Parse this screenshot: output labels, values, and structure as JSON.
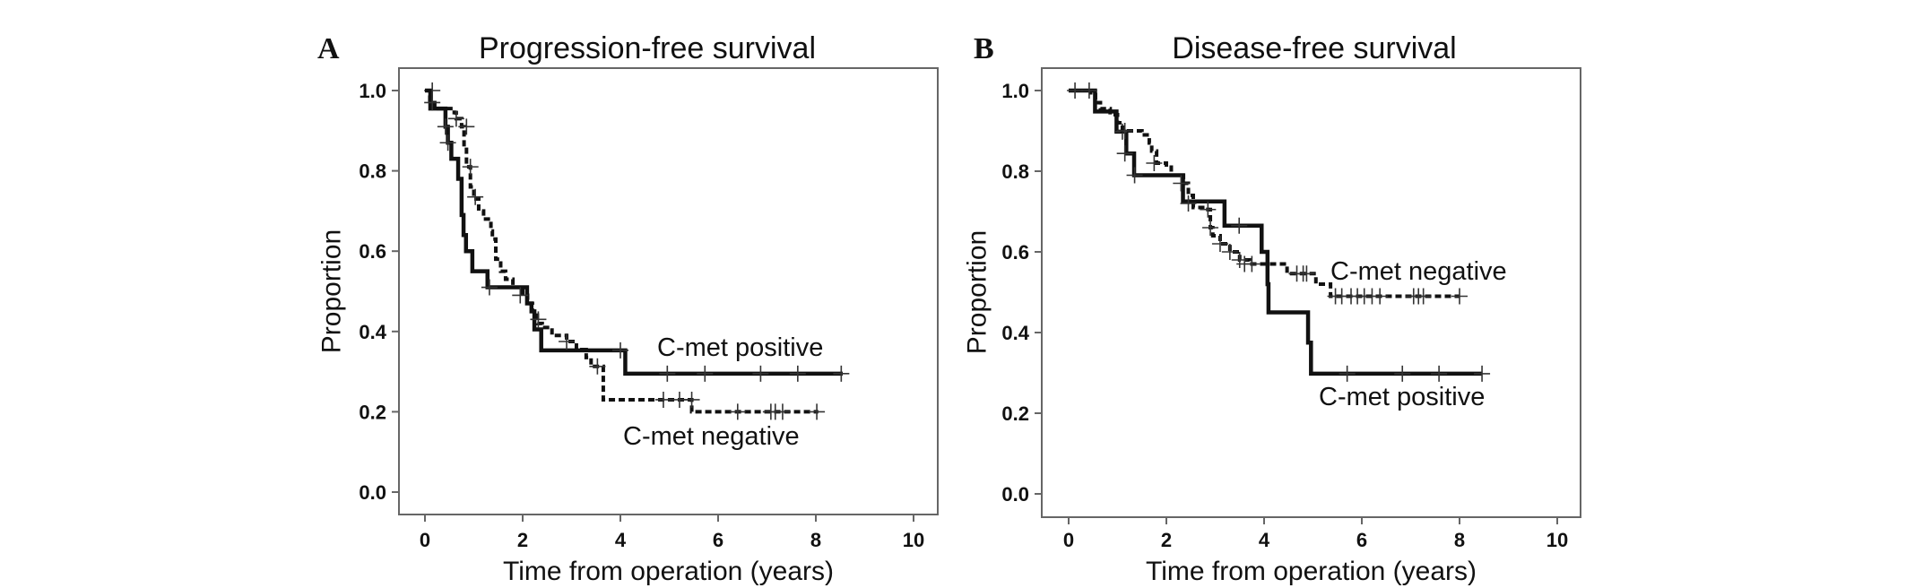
{
  "chart_data": [
    {
      "type": "line",
      "panel_label": "A",
      "title": "Progression-free survival",
      "xlabel": "Time from operation (years)",
      "ylabel": "Proportion",
      "xlim": [
        0,
        10
      ],
      "ylim": [
        0,
        1
      ],
      "xticks": [
        "0",
        "2",
        "4",
        "6",
        "8",
        "10"
      ],
      "yticks": [
        "0.0",
        "0.2",
        "0.4",
        "0.6",
        "0.8",
        "1.0"
      ],
      "grid": false,
      "series": [
        {
          "name": "C-met positive",
          "style": "solid",
          "color": "#111111",
          "steps": [
            [
              0,
              1.0
            ],
            [
              0.11,
              0.955
            ],
            [
              0.42,
              0.91
            ],
            [
              0.47,
              0.87
            ],
            [
              0.54,
              0.83
            ],
            [
              0.68,
              0.78
            ],
            [
              0.75,
              0.69
            ],
            [
              0.79,
              0.64
            ],
            [
              0.84,
              0.6
            ],
            [
              0.97,
              0.55
            ],
            [
              1.28,
              0.51
            ],
            [
              2.09,
              0.47
            ],
            [
              2.18,
              0.45
            ],
            [
              2.24,
              0.405
            ],
            [
              2.38,
              0.353
            ],
            [
              4.1,
              0.295
            ]
          ],
          "end": 8.55,
          "censored": [
            [
              0.15,
              1.0
            ],
            [
              0.42,
              0.91
            ],
            [
              0.47,
              0.87
            ],
            [
              1.32,
              0.51
            ],
            [
              4.0,
              0.353
            ],
            [
              4.96,
              0.295
            ],
            [
              5.73,
              0.295
            ],
            [
              6.87,
              0.295
            ],
            [
              7.63,
              0.295
            ],
            [
              8.52,
              0.295
            ]
          ]
        },
        {
          "name": "C-met negative",
          "style": "dashed",
          "color": "#111111",
          "steps": [
            [
              0,
              1.0
            ],
            [
              0.1,
              0.97
            ],
            [
              0.2,
              0.955
            ],
            [
              0.6,
              0.945
            ],
            [
              0.64,
              0.93
            ],
            [
              0.75,
              0.91
            ],
            [
              0.8,
              0.86
            ],
            [
              0.85,
              0.81
            ],
            [
              0.93,
              0.76
            ],
            [
              1.0,
              0.73
            ],
            [
              1.1,
              0.7
            ],
            [
              1.2,
              0.68
            ],
            [
              1.35,
              0.65
            ],
            [
              1.38,
              0.63
            ],
            [
              1.45,
              0.58
            ],
            [
              1.55,
              0.55
            ],
            [
              1.65,
              0.53
            ],
            [
              1.8,
              0.51
            ],
            [
              2.0,
              0.49
            ],
            [
              2.1,
              0.47
            ],
            [
              2.2,
              0.45
            ],
            [
              2.3,
              0.42
            ],
            [
              2.4,
              0.41
            ],
            [
              2.6,
              0.39
            ],
            [
              2.9,
              0.375
            ],
            [
              3.1,
              0.355
            ],
            [
              3.3,
              0.335
            ],
            [
              3.4,
              0.313
            ],
            [
              3.65,
              0.23
            ],
            [
              5.46,
              0.2
            ]
          ],
          "end": 8.05,
          "censored": [
            [
              0.15,
              0.97
            ],
            [
              0.64,
              0.93
            ],
            [
              0.85,
              0.91
            ],
            [
              0.93,
              0.81
            ],
            [
              1.03,
              0.735
            ],
            [
              1.95,
              0.49
            ],
            [
              2.32,
              0.43
            ],
            [
              2.9,
              0.375
            ],
            [
              3.53,
              0.313
            ],
            [
              4.88,
              0.23
            ],
            [
              5.21,
              0.23
            ],
            [
              5.46,
              0.23
            ],
            [
              6.4,
              0.2
            ],
            [
              7.08,
              0.2
            ],
            [
              7.17,
              0.2
            ],
            [
              7.32,
              0.2
            ],
            [
              8.02,
              0.2
            ]
          ]
        }
      ]
    },
    {
      "type": "line",
      "panel_label": "B",
      "title": "Disease-free survival",
      "xlabel": "Time from operation (years)",
      "ylabel": "Proportion",
      "xlim": [
        0,
        10
      ],
      "ylim": [
        0,
        1
      ],
      "xticks": [
        "0",
        "2",
        "4",
        "6",
        "8",
        "10"
      ],
      "yticks": [
        "0.0",
        "0.2",
        "0.4",
        "0.6",
        "0.8",
        "1.0"
      ],
      "grid": false,
      "series": [
        {
          "name": "C-met positive",
          "style": "solid",
          "color": "#111111",
          "steps": [
            [
              0,
              1.0
            ],
            [
              0.54,
              0.948
            ],
            [
              0.98,
              0.898
            ],
            [
              1.18,
              0.844
            ],
            [
              1.34,
              0.79
            ],
            [
              2.34,
              0.725
            ],
            [
              3.19,
              0.665
            ],
            [
              3.95,
              0.6
            ],
            [
              4.07,
              0.52
            ],
            [
              4.09,
              0.45
            ],
            [
              4.9,
              0.375
            ],
            [
              4.96,
              0.298
            ]
          ],
          "end": 8.46,
          "censored": [
            [
              1.1,
              0.898
            ],
            [
              1.15,
              0.844
            ],
            [
              1.35,
              0.79
            ],
            [
              3.49,
              0.665
            ],
            [
              5.7,
              0.298
            ],
            [
              6.83,
              0.298
            ],
            [
              7.58,
              0.298
            ],
            [
              8.46,
              0.298
            ]
          ]
        },
        {
          "name": "C-met negative",
          "style": "dashed",
          "color": "#111111",
          "steps": [
            [
              0,
              1.0
            ],
            [
              0.45,
              0.99
            ],
            [
              0.55,
              0.97
            ],
            [
              0.65,
              0.955
            ],
            [
              0.85,
              0.94
            ],
            [
              1.0,
              0.92
            ],
            [
              1.1,
              0.9
            ],
            [
              1.5,
              0.89
            ],
            [
              1.65,
              0.87
            ],
            [
              1.7,
              0.85
            ],
            [
              1.8,
              0.82
            ],
            [
              2.0,
              0.81
            ],
            [
              2.1,
              0.79
            ],
            [
              2.35,
              0.77
            ],
            [
              2.45,
              0.74
            ],
            [
              2.55,
              0.71
            ],
            [
              2.85,
              0.705
            ],
            [
              2.9,
              0.66
            ],
            [
              2.95,
              0.64
            ],
            [
              3.1,
              0.62
            ],
            [
              3.3,
              0.6
            ],
            [
              3.5,
              0.58
            ],
            [
              3.7,
              0.57
            ],
            [
              4.47,
              0.546
            ],
            [
              5.06,
              0.52
            ],
            [
              5.36,
              0.49
            ]
          ],
          "end": 8.0,
          "censored": [
            [
              0.13,
              1.0
            ],
            [
              0.42,
              1.0
            ],
            [
              1.15,
              0.9
            ],
            [
              1.75,
              0.82
            ],
            [
              2.3,
              0.77
            ],
            [
              2.45,
              0.72
            ],
            [
              2.85,
              0.705
            ],
            [
              2.9,
              0.66
            ],
            [
              3.1,
              0.62
            ],
            [
              3.3,
              0.6
            ],
            [
              3.5,
              0.58
            ],
            [
              3.6,
              0.57
            ],
            [
              3.75,
              0.57
            ],
            [
              4.67,
              0.546
            ],
            [
              4.8,
              0.546
            ],
            [
              4.87,
              0.546
            ],
            [
              5.46,
              0.49
            ],
            [
              5.59,
              0.49
            ],
            [
              5.78,
              0.49
            ],
            [
              5.91,
              0.49
            ],
            [
              6.05,
              0.49
            ],
            [
              6.21,
              0.49
            ],
            [
              6.37,
              0.49
            ],
            [
              7.06,
              0.49
            ],
            [
              7.16,
              0.49
            ],
            [
              7.26,
              0.49
            ],
            [
              8.0,
              0.49
            ]
          ]
        }
      ]
    }
  ]
}
